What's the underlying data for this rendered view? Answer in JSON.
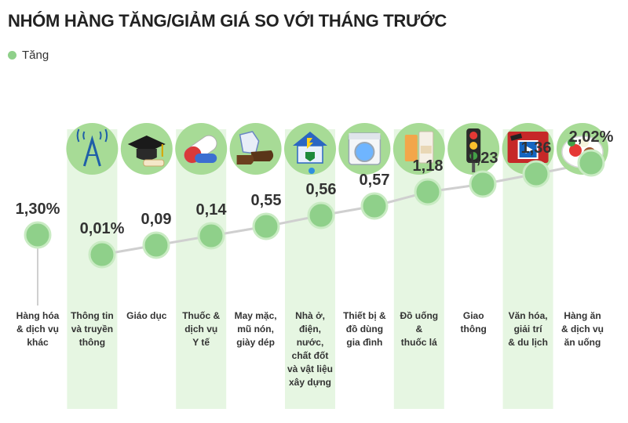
{
  "title": "NHÓM HÀNG TĂNG/GIẢM GIÁ SO VỚI THÁNG TRƯỚC",
  "colors": {
    "band": "#e6f6e2",
    "icon_circle": "#a7db96",
    "point": "#8fd08a",
    "point_stroke": "#c9ebc3",
    "line": "#cfcfcf",
    "text": "#333333"
  },
  "chart_data": {
    "type": "line",
    "title": "NHÓM HÀNG TĂNG/GIẢM GIÁ SO VỚI THÁNG TRƯỚC",
    "legend": [
      "Tăng"
    ],
    "legend_position": "top-left",
    "grid": false,
    "categories": [
      {
        "label": [
          "Hàng hóa",
          "& dịch vụ",
          "khác"
        ],
        "value": 1.3,
        "value_label": "1,30%",
        "icon": "",
        "highlight": false
      },
      {
        "label": [
          "Thông tin",
          "và truyền",
          "thông"
        ],
        "value": 0.01,
        "value_label": "0,01%",
        "icon": "tower-icon",
        "highlight": true
      },
      {
        "label": [
          "Giáo dục"
        ],
        "value": 0.09,
        "value_label": "0,09",
        "icon": "graduation-cap-icon",
        "highlight": false
      },
      {
        "label": [
          "Thuốc &",
          "dịch vụ",
          "Y tế"
        ],
        "value": 0.14,
        "value_label": "0,14",
        "icon": "pill-icon",
        "highlight": true
      },
      {
        "label": [
          "May mặc,",
          "mũ nón,",
          "giày dép"
        ],
        "value": 0.55,
        "value_label": "0,55",
        "icon": "shirt-shoe-icon",
        "highlight": false
      },
      {
        "label": [
          "Nhà ở,",
          "điện,",
          "nước,",
          "chất đốt",
          "và vật liệu",
          "xây dựng"
        ],
        "value": 0.56,
        "value_label": "0,56",
        "icon": "house-plug-icon",
        "highlight": true
      },
      {
        "label": [
          "Thiết bị &",
          "đồ dùng",
          "gia đình"
        ],
        "value": 0.57,
        "value_label": "0,57",
        "icon": "washing-machine-icon",
        "highlight": false
      },
      {
        "label": [
          "Đồ uống",
          "&",
          "thuốc lá"
        ],
        "value": 1.18,
        "value_label": "1,18",
        "icon": "drinks-icon",
        "highlight": true
      },
      {
        "label": [
          "Giao",
          "thông"
        ],
        "value": 1.23,
        "value_label": "1,23",
        "icon": "traffic-light-icon",
        "highlight": false
      },
      {
        "label": [
          "Văn hóa,",
          "giải trí",
          "& du lịch"
        ],
        "value": 1.36,
        "value_label": "1,36",
        "icon": "film-icon",
        "highlight": true
      },
      {
        "label": [
          "Hàng ăn",
          "& dịch vụ",
          "ăn uống"
        ],
        "value": 2.02,
        "value_label": "2,02%",
        "icon": "food-plate-icon",
        "highlight": false
      }
    ]
  }
}
